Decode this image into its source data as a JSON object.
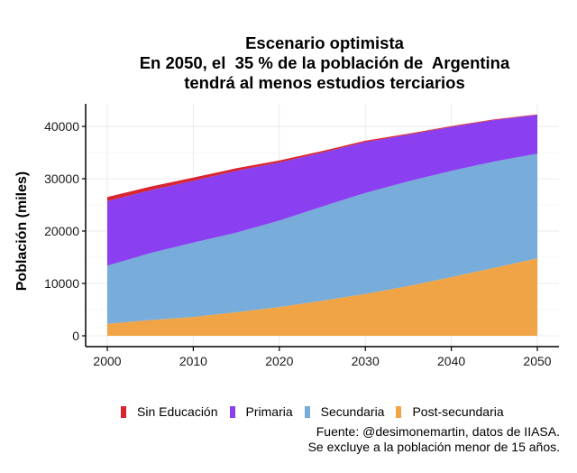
{
  "chart_data": {
    "type": "area",
    "stacked": true,
    "title": [
      "Escenario optimista",
      "En 2050, el  35 % de la población de  Argentina",
      "tendrá al menos estudios terciarios"
    ],
    "xlabel": "",
    "ylabel": "Población (miles)",
    "x": [
      2000,
      2005,
      2010,
      2015,
      2020,
      2025,
      2030,
      2035,
      2040,
      2045,
      2050
    ],
    "xlim": [
      2000,
      2050
    ],
    "ylim": [
      0,
      42500
    ],
    "xticks": [
      "2000",
      "2010",
      "2020",
      "2030",
      "2040",
      "2050"
    ],
    "xtick_values": [
      2000,
      2010,
      2020,
      2030,
      2040,
      2050
    ],
    "yticks": [
      "0",
      "10000",
      "20000",
      "30000",
      "40000"
    ],
    "ytick_values": [
      0,
      10000,
      20000,
      30000,
      40000
    ],
    "grid": true,
    "legend_position": "bottom",
    "series": [
      {
        "name": "Post-secundaria",
        "color": "#f0a445",
        "values": [
          2300,
          3000,
          3600,
          4500,
          5500,
          6700,
          8000,
          9500,
          11200,
          13000,
          14800
        ]
      },
      {
        "name": "Secundaria",
        "color": "#78acdb",
        "values": [
          11100,
          12800,
          14200,
          15200,
          16500,
          18000,
          19300,
          20000,
          20300,
          20300,
          20000
        ]
      },
      {
        "name": "Primaria",
        "color": "#8a3ff0",
        "values": [
          12300,
          12000,
          11800,
          11800,
          11100,
          10300,
          9700,
          8900,
          8400,
          7900,
          7400
        ]
      },
      {
        "name": "Sin Educación",
        "color": "#d7262f",
        "values": [
          800,
          700,
          600,
          500,
          400,
          300,
          250,
          200,
          150,
          120,
          100
        ]
      }
    ],
    "legend_order": [
      "Sin Educación",
      "Primaria",
      "Secundaria",
      "Post-secundaria"
    ]
  },
  "legend": [
    {
      "label": "Sin Educación",
      "color": "#d7262f"
    },
    {
      "label": "Primaria",
      "color": "#8a3ff0"
    },
    {
      "label": "Secundaria",
      "color": "#78acdb"
    },
    {
      "label": "Post-secundaria",
      "color": "#f0a445"
    }
  ],
  "caption": [
    "Fuente: @desimonemartin, datos de IIASA.",
    "Se excluye a la población menor de 15 años."
  ]
}
